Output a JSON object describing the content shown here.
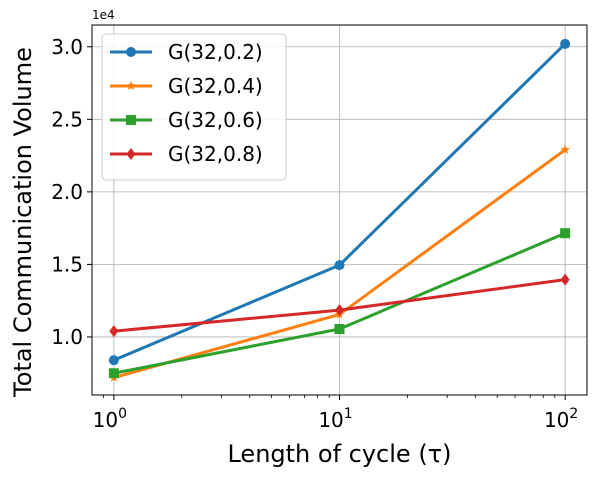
{
  "chart_data": {
    "type": "line",
    "x": [
      1,
      10,
      100
    ],
    "x_scale": "log",
    "xlabel": "Length of cycle (τ)",
    "xticks": [
      {
        "value": 1,
        "base": "10",
        "exp": "0"
      },
      {
        "value": 10,
        "base": "10",
        "exp": "1"
      },
      {
        "value": 100,
        "base": "10",
        "exp": "2"
      }
    ],
    "ylabel": "Total Communication Volume",
    "y_offset_text": "1e4",
    "y_multiplier": 10000,
    "yticks": [
      {
        "value": 1.0,
        "label": "1.0"
      },
      {
        "value": 1.5,
        "label": "1.5"
      },
      {
        "value": 2.0,
        "label": "2.0"
      },
      {
        "value": 2.5,
        "label": "2.5"
      },
      {
        "value": 3.0,
        "label": "3.0"
      }
    ],
    "xlim": [
      0.8,
      125
    ],
    "ylim": [
      0.6,
      3.15
    ],
    "grid": true,
    "legend_position": "top-left",
    "series": [
      {
        "name": "G(32,0.2)",
        "color": "#1f77b4",
        "marker": "circle",
        "values": [
          0.84,
          1.495,
          3.02
        ]
      },
      {
        "name": "G(32,0.4)",
        "color": "#ff7f0e",
        "marker": "star",
        "values": [
          0.72,
          1.155,
          2.29
        ]
      },
      {
        "name": "G(32,0.6)",
        "color": "#2ca02c",
        "marker": "square",
        "values": [
          0.75,
          1.055,
          1.715
        ]
      },
      {
        "name": "G(32,0.8)",
        "color": "#d62728",
        "marker": "diamond",
        "values": [
          1.04,
          1.185,
          1.395
        ]
      }
    ]
  }
}
